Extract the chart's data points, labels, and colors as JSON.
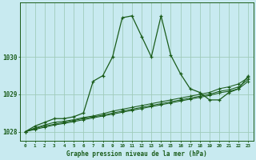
{
  "title": "Graphe pression niveau de la mer (hPa)",
  "bg_color": "#c8eaf0",
  "grid_color": "#a0ccbb",
  "line_color": "#1a5c1a",
  "x_values": [
    0,
    1,
    2,
    3,
    4,
    5,
    6,
    7,
    8,
    9,
    10,
    11,
    12,
    13,
    14,
    15,
    16,
    17,
    18,
    19,
    20,
    21,
    22,
    23
  ],
  "series1": [
    1028.0,
    1028.15,
    1028.25,
    1028.35,
    1028.35,
    1028.4,
    1028.5,
    1029.35,
    1029.5,
    1030.0,
    1031.05,
    1031.1,
    1030.55,
    1030.0,
    1031.1,
    1030.05,
    1029.55,
    1029.15,
    1029.05,
    1028.85,
    1028.85,
    1029.05,
    1029.15,
    1029.5
  ],
  "series2": [
    1028.0,
    1028.1,
    1028.18,
    1028.25,
    1028.28,
    1028.32,
    1028.38,
    1028.42,
    1028.48,
    1028.55,
    1028.6,
    1028.65,
    1028.7,
    1028.75,
    1028.8,
    1028.85,
    1028.9,
    1028.95,
    1029.0,
    1029.05,
    1029.15,
    1029.2,
    1029.28,
    1029.45
  ],
  "series3": [
    1028.0,
    1028.08,
    1028.15,
    1028.2,
    1028.25,
    1028.3,
    1028.35,
    1028.4,
    1028.44,
    1028.5,
    1028.55,
    1028.6,
    1028.65,
    1028.7,
    1028.75,
    1028.8,
    1028.85,
    1028.9,
    1028.95,
    1029.0,
    1029.08,
    1029.12,
    1029.2,
    1029.4
  ],
  "series4": [
    1028.0,
    1028.06,
    1028.12,
    1028.18,
    1028.22,
    1028.27,
    1028.32,
    1028.37,
    1028.42,
    1028.47,
    1028.52,
    1028.57,
    1028.62,
    1028.67,
    1028.72,
    1028.77,
    1028.82,
    1028.87,
    1028.92,
    1028.97,
    1029.04,
    1029.08,
    1029.15,
    1029.35
  ],
  "yticks": [
    1028,
    1029,
    1030
  ],
  "ylim": [
    1027.75,
    1031.45
  ],
  "xlim": [
    -0.5,
    23.5
  ],
  "figsize": [
    3.2,
    2.0
  ],
  "dpi": 100
}
